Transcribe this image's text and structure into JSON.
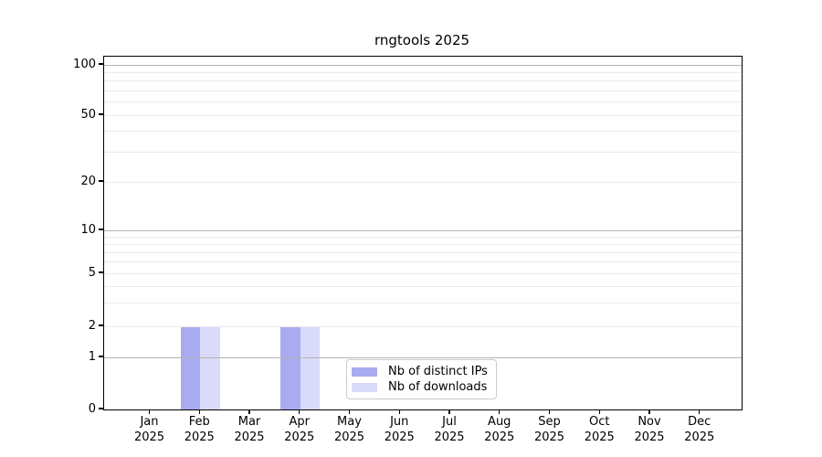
{
  "chart_data": {
    "type": "bar",
    "title": "rngtools 2025",
    "categories": [
      "Jan",
      "Feb",
      "Mar",
      "Apr",
      "May",
      "Jun",
      "Jul",
      "Aug",
      "Sep",
      "Oct",
      "Nov",
      "Dec"
    ],
    "x_tick_year": "2025",
    "series": [
      {
        "name": "Nb of distinct IPs",
        "color": "#a9abf0",
        "values": [
          0,
          2,
          0,
          2,
          0,
          0,
          0,
          0,
          0,
          0,
          0,
          0
        ]
      },
      {
        "name": "Nb of downloads",
        "color": "#d9dbf8",
        "values": [
          0,
          2,
          0,
          2,
          0,
          0,
          0,
          0,
          0,
          0,
          0,
          0
        ]
      }
    ],
    "xlabel": "",
    "ylabel": "",
    "y_scale": "symlog",
    "ylim": [
      0,
      110
    ],
    "y_ticks": [
      0,
      1,
      2,
      5,
      10,
      20,
      50,
      100
    ],
    "y_major_gridlines": [
      1,
      10,
      100
    ],
    "y_minor_gridlines": [
      2,
      3,
      4,
      5,
      6,
      7,
      8,
      9,
      20,
      30,
      40,
      50,
      60,
      70,
      80,
      90
    ],
    "grid": true,
    "legend": {
      "position": "lower-center",
      "entries": [
        "Nb of distinct IPs",
        "Nb of downloads"
      ]
    },
    "colors": {
      "bar_distinct_ips": "#a9abf0",
      "bar_downloads": "#d9dbf8",
      "major_gridline": "#b3b3b3",
      "minor_gridline": "#ebebeb",
      "axis_line": "#000000",
      "legend_border": "#cccccc",
      "text": "#000000",
      "background": "#ffffff"
    }
  }
}
